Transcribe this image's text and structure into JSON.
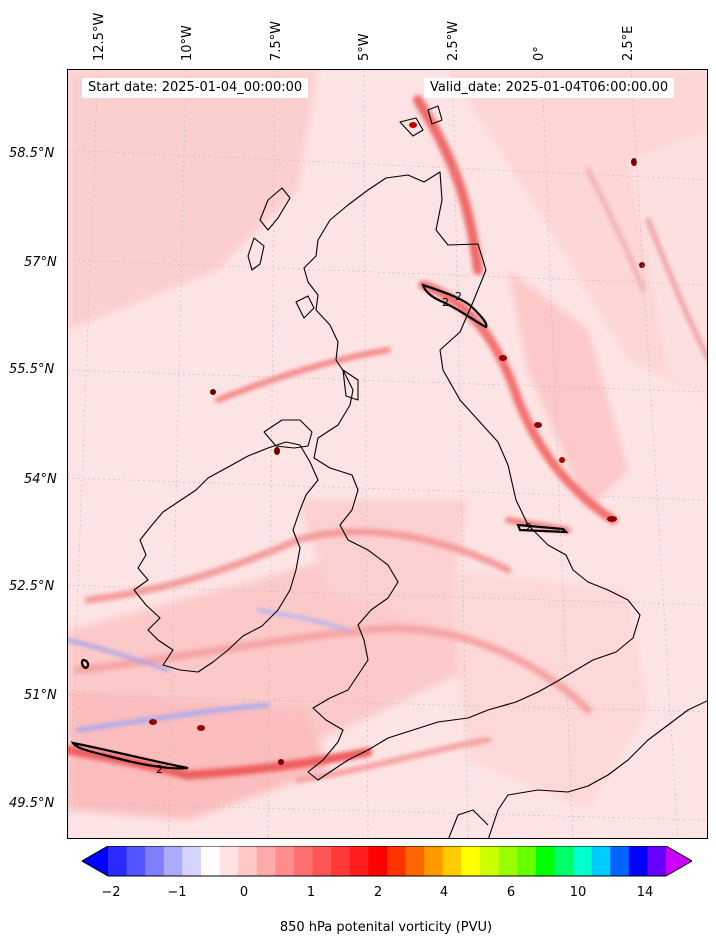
{
  "header": {
    "start_date": "Start date: 2025-01-04_00:00:00",
    "valid_date": "Valid_date: 2025-01-04T06:00:00.00"
  },
  "axes": {
    "lon_labels": [
      "12.5°W",
      "10°W",
      "7.5°W",
      "5°W",
      "2.5°W",
      "0°",
      "2.5°E"
    ],
    "lat_labels": [
      "58.5°N",
      "57°N",
      "55.5°N",
      "54°N",
      "52.5°N",
      "51°N",
      "49.5°N"
    ]
  },
  "contour_labels": [
    "2",
    "2",
    "2",
    "2"
  ],
  "colorbar": {
    "label": "850 hPa potenital vorticity (PVU)",
    "ticks": [
      "−2",
      "−1",
      "0",
      "1",
      "2",
      "4",
      "6",
      "10",
      "14"
    ],
    "colors": [
      "#0000ff",
      "#2a2aff",
      "#5555ff",
      "#7f7fff",
      "#aaaaff",
      "#d4d4ff",
      "#ffffff",
      "#ffe2e2",
      "#ffc6c6",
      "#ffaaaa",
      "#ff8d8d",
      "#ff7070",
      "#ff5555",
      "#ff3838",
      "#ff1c1c",
      "#ff0000",
      "#ff3300",
      "#ff6600",
      "#ff9900",
      "#ffcc00",
      "#ffff00",
      "#ccff00",
      "#99ff00",
      "#66ff00",
      "#00ff00",
      "#00ff66",
      "#00ffcc",
      "#00ccff",
      "#0066ff",
      "#0000ff",
      "#6600ff",
      "#cc00ff"
    ]
  }
}
